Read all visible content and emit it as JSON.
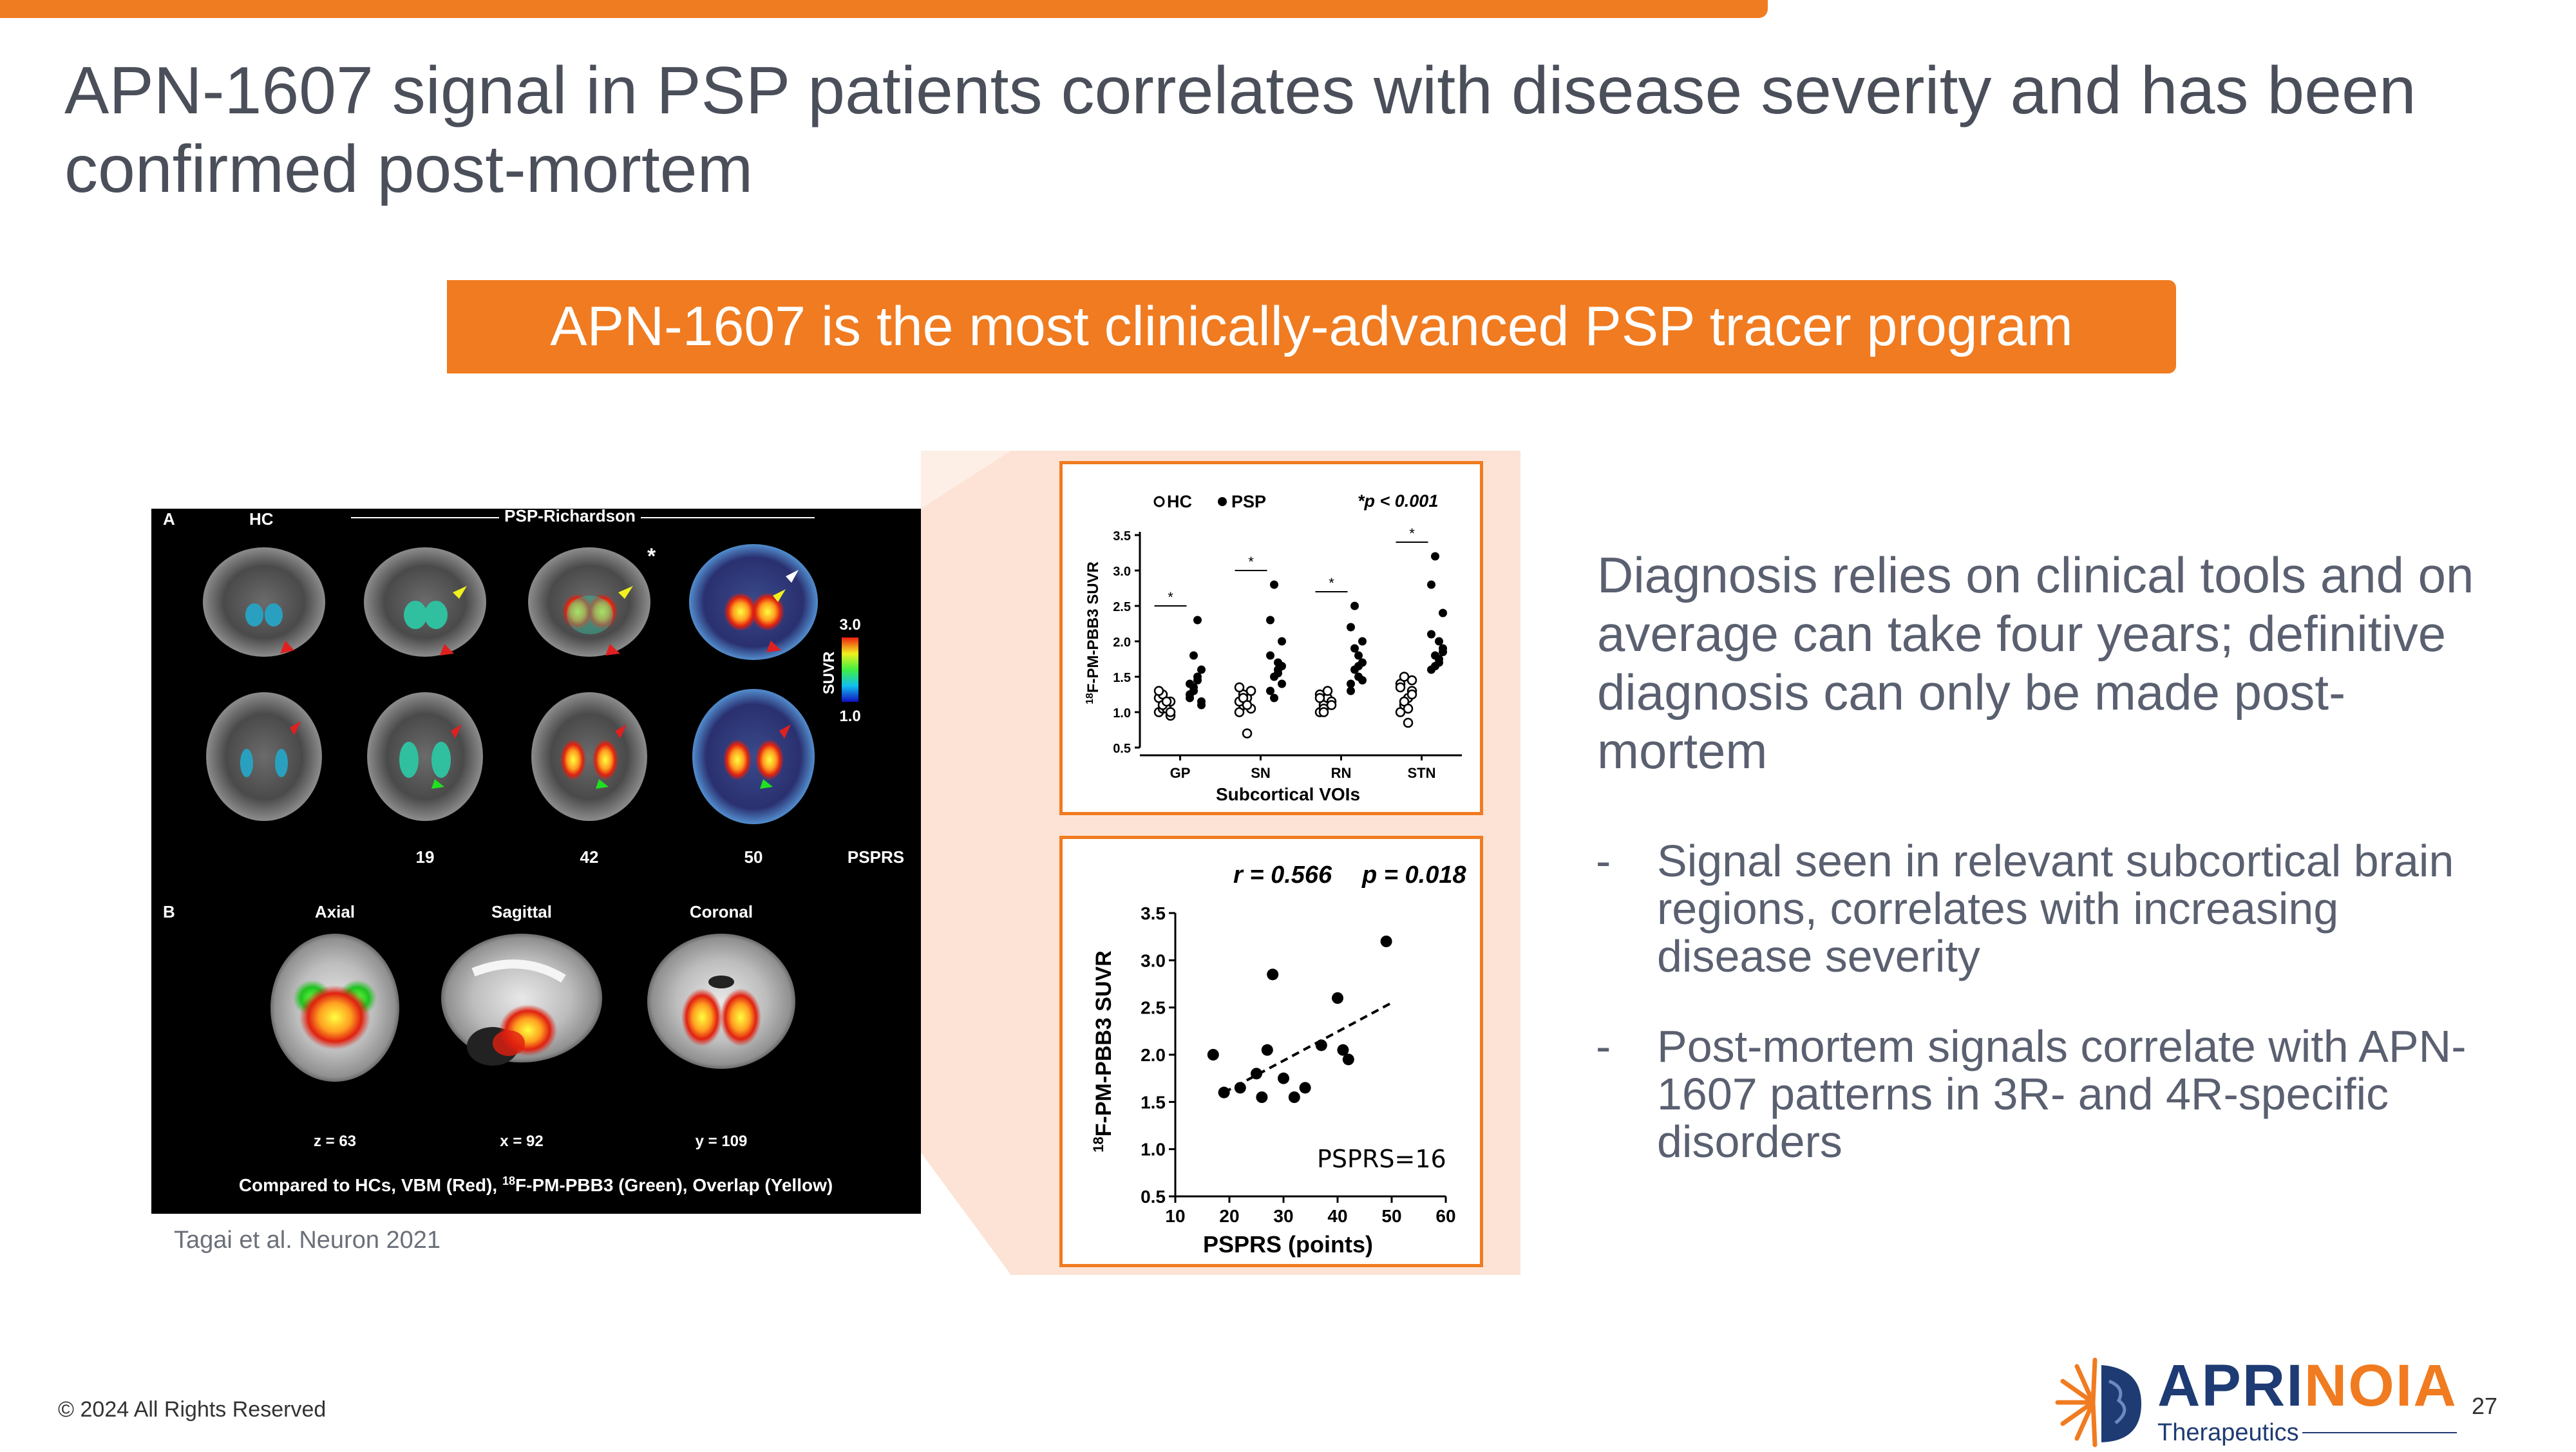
{
  "slide": {
    "title": "APN-1607 signal in PSP patients correlates with disease severity and has been confirmed post-mortem",
    "banner": "APN-1607 is the most clinically-advanced PSP tracer program",
    "main_text": "Diagnosis relies on clinical tools and on average can take four years; definitive diagnosis can only be made post-mortem",
    "bullets": [
      "Signal seen in relevant subcortical brain regions, correlates with increasing disease severity",
      "Post-mortem signals correlate with APN-1607 patterns in 3R- and 4R-specific disorders"
    ],
    "bullet_marker": "-",
    "citation": "Tagai et al. Neuron 2021",
    "copyright": "© 2024 All Rights Reserved",
    "page_number": "27",
    "logo": {
      "word_part1": "APRI",
      "word_part2": "NOIA",
      "subtitle": "Therapeutics"
    },
    "colors": {
      "accent_orange": "#f07b20",
      "navy": "#1f3b73",
      "text_gray": "#5a6070"
    }
  },
  "figure_a": {
    "panel_a": "A",
    "panel_b": "B",
    "hc": "HC",
    "group": "PSP-Richardson",
    "asterisk": "*",
    "colorbar_label": "SUVR",
    "colorbar_max": "3.0",
    "colorbar_min": "1.0",
    "pspprs_scores": [
      "19",
      "42",
      "50"
    ],
    "pspprs_label": "PSPRS",
    "views": [
      "Axial",
      "Sagittal",
      "Coronal"
    ],
    "coords": [
      "z = 63",
      "x = 92",
      "y = 109"
    ],
    "caption_pre": "Compared to HCs, VBM (Red), ",
    "caption_sup": "18",
    "caption_post": "F-PM-PBB3 (Green), Overlap (Yellow)"
  },
  "chart_data": [
    {
      "type": "scatter",
      "title": "",
      "legend": [
        "HC",
        "PSP"
      ],
      "legend_position": "top-left",
      "annotation": "*p < 0.001",
      "xlabel": "Subcortical VOIs",
      "ylabel_sup": "18",
      "ylabel": "F-PM-PBB3 SUVR",
      "categories": [
        "GP",
        "SN",
        "RN",
        "STN"
      ],
      "ylim": [
        0.5,
        3.5
      ],
      "yticks": [
        "0.5",
        "1.0",
        "1.5",
        "2.0",
        "2.5",
        "3.0",
        "3.5"
      ],
      "significance_marker": "*",
      "series": [
        {
          "name": "HC",
          "values": [
            [
              1.0,
              1.05,
              1.1,
              1.15,
              1.2,
              1.25,
              1.05,
              0.95,
              1.3,
              1.1,
              1.15,
              1.0
            ],
            [
              1.0,
              1.1,
              1.2,
              1.3,
              1.15,
              1.25,
              0.7,
              1.05,
              1.35,
              1.2,
              1.1,
              1.3
            ],
            [
              1.0,
              1.1,
              1.2,
              1.15,
              1.25,
              1.05,
              1.3,
              1.1,
              1.2,
              1.0
            ],
            [
              1.0,
              1.1,
              1.2,
              1.3,
              1.4,
              1.5,
              0.85,
              1.25,
              1.35,
              1.15,
              1.05,
              1.45
            ]
          ]
        },
        {
          "name": "PSP",
          "values": [
            [
              1.2,
              1.3,
              1.5,
              1.1,
              1.4,
              1.8,
              2.3,
              1.6,
              1.25,
              1.35,
              1.45,
              1.15
            ],
            [
              1.3,
              1.5,
              1.7,
              2.0,
              2.3,
              2.8,
              1.6,
              1.4,
              1.8,
              1.2,
              1.55,
              1.65
            ],
            [
              1.4,
              1.6,
              1.8,
              2.0,
              2.2,
              2.5,
              1.5,
              1.7,
              1.3,
              1.9,
              1.65,
              1.45
            ],
            [
              1.6,
              1.8,
              2.0,
              2.4,
              2.8,
              3.2,
              1.7,
              1.9,
              2.1,
              1.65,
              1.75,
              1.85
            ]
          ]
        }
      ]
    },
    {
      "type": "scatter",
      "title": "",
      "annotation_r": "r = 0.566",
      "annotation_p": "p = 0.018",
      "label": "PSPRS=16",
      "xlabel": "PSPRS (points)",
      "ylabel_sup": "18",
      "ylabel": "F-PM-PBB3 SUVR",
      "xlim": [
        10,
        60
      ],
      "ylim": [
        0.5,
        3.5
      ],
      "xticks": [
        "10",
        "20",
        "30",
        "40",
        "50",
        "60"
      ],
      "yticks": [
        "0.5",
        "1.0",
        "1.5",
        "2.0",
        "2.5",
        "3.0",
        "3.5"
      ],
      "x": [
        17,
        19,
        22,
        25,
        26,
        27,
        28,
        30,
        32,
        34,
        37,
        40,
        41,
        42,
        49
      ],
      "y": [
        2.0,
        1.6,
        1.65,
        1.8,
        1.55,
        2.05,
        2.85,
        1.75,
        1.55,
        1.65,
        2.1,
        2.6,
        2.05,
        1.95,
        3.2
      ],
      "trend": {
        "x": [
          19,
          50
        ],
        "y": [
          1.6,
          2.55
        ]
      }
    }
  ]
}
